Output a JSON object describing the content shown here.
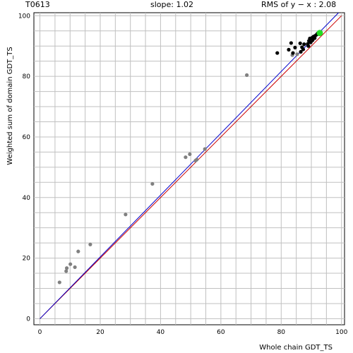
{
  "header": {
    "target_id": "T0613",
    "slope_text": "slope: 1.02",
    "rms_text": "RMS of  y − x : 2.08"
  },
  "chart_data": {
    "type": "scatter",
    "title": "",
    "xlabel": "Whole chain GDT_TS",
    "ylabel": "Weighted sum of domain GDT_TS",
    "xlim": [
      -2,
      101
    ],
    "ylim": [
      -2,
      101
    ],
    "x_ticks": [
      0,
      20,
      40,
      60,
      80,
      100
    ],
    "y_ticks": [
      0,
      20,
      40,
      60,
      80,
      100
    ],
    "grid": true,
    "minor_grid_step": 5,
    "colors": {
      "gray_points": "#808080",
      "black_points": "#000000",
      "highlight_point": "#22dd22",
      "identity_line": "#cc0000",
      "fit_line": "#0000cc",
      "grid": "#c0c0c0"
    },
    "lines": [
      {
        "kind": "identity",
        "slope": 1.0,
        "intercept": 0
      },
      {
        "kind": "fit",
        "slope": 1.02,
        "intercept": 0
      }
    ],
    "series": [
      {
        "color": "#808080",
        "points": [
          [
            6.5,
            12
          ],
          [
            8.7,
            15.7
          ],
          [
            8.9,
            16.7
          ],
          [
            10.1,
            18
          ],
          [
            11.6,
            17
          ],
          [
            12.7,
            22.2
          ],
          [
            16.7,
            24.5
          ],
          [
            28.4,
            34.4
          ],
          [
            37.3,
            44.5
          ],
          [
            48.3,
            53.3
          ],
          [
            49.7,
            54.3
          ],
          [
            51.6,
            52.2
          ],
          [
            52,
            52.5
          ],
          [
            54.7,
            56
          ],
          [
            68.6,
            80.4
          ],
          [
            83.7,
            87
          ],
          [
            85.3,
            87.3
          ]
        ]
      },
      {
        "color": "#000000",
        "points": [
          [
            78.7,
            87.7
          ],
          [
            82.5,
            88.8
          ],
          [
            83.3,
            91
          ],
          [
            83.9,
            87.7
          ],
          [
            84.6,
            89.5
          ],
          [
            86.3,
            90.9
          ],
          [
            86.5,
            88.1
          ],
          [
            86.9,
            89.6
          ],
          [
            87.3,
            88.9
          ],
          [
            87.6,
            90.6
          ],
          [
            88.8,
            90.7
          ],
          [
            89,
            90
          ],
          [
            89.2,
            91.7
          ],
          [
            89.5,
            92.5
          ],
          [
            89.8,
            91.2
          ],
          [
            90.2,
            92.7
          ],
          [
            90.4,
            91.9
          ],
          [
            90.7,
            93.1
          ],
          [
            91.1,
            92.6
          ],
          [
            91.3,
            93.4
          ],
          [
            91.8,
            93.8
          ],
          [
            92.1,
            94.2
          ]
        ]
      },
      {
        "color": "#22dd22",
        "points": [
          [
            92.8,
            94.3
          ]
        ]
      }
    ]
  }
}
